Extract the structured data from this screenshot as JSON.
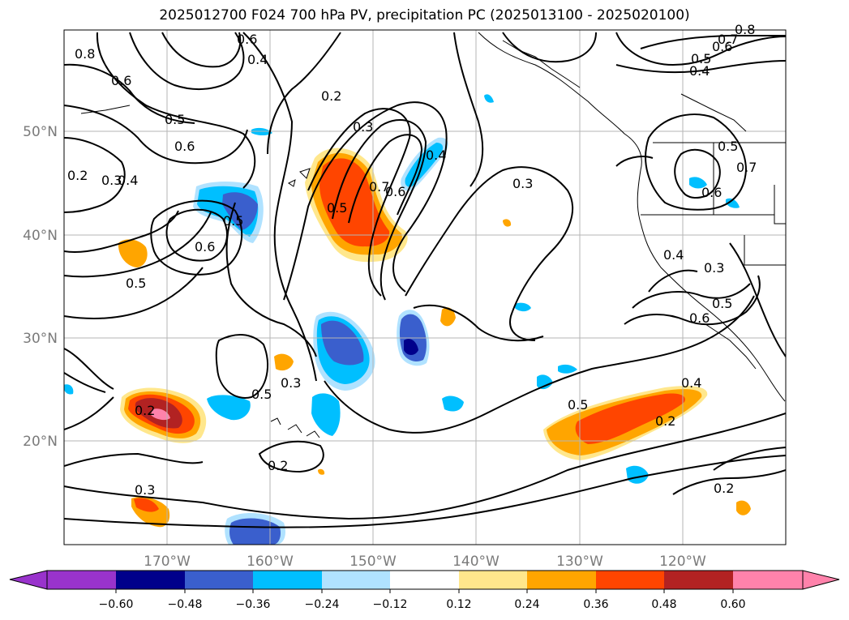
{
  "title": "2025012700 F024 700 hPa PV, precipitation PC (2025013100 - 2025020100)",
  "lon_labels": [
    "170°W",
    "160°W",
    "150°W",
    "140°W",
    "130°W",
    "120°W"
  ],
  "lat_labels": [
    "50°N",
    "40°N",
    "30°N",
    "20°N"
  ],
  "contour_labels": [
    "0.6",
    "0.4",
    "0.7",
    "0.8",
    "0.5",
    "0.6",
    "0.4",
    "0.8",
    "0.6",
    "0.2",
    "0.5",
    "0.6",
    "0.3",
    "0.2",
    "0.3",
    "0.4",
    "0.5",
    "0.6",
    "0.5",
    "0.7",
    "0.6",
    "0.4",
    "0.3",
    "0.5",
    "0.6",
    "0.7",
    "0.5",
    "0.4",
    "0.3",
    "0.5",
    "0.6",
    "0.5",
    "0.3",
    "0.2",
    "0.2",
    "0.5",
    "0.4",
    "0.2",
    "0.3",
    "0.2"
  ],
  "colorbar": {
    "ticks": [
      "−0.60",
      "−0.48",
      "−0.36",
      "−0.24",
      "−0.12",
      "0.12",
      "0.24",
      "0.36",
      "0.48",
      "0.60"
    ],
    "colors": [
      "#9933cc",
      "#00008b",
      "#3a5fcd",
      "#00bfff",
      "#b0e2ff",
      "#ffffff",
      "#ffe78c",
      "#ffa500",
      "#ff4500",
      "#b22222",
      "#ff82ab"
    ]
  }
}
